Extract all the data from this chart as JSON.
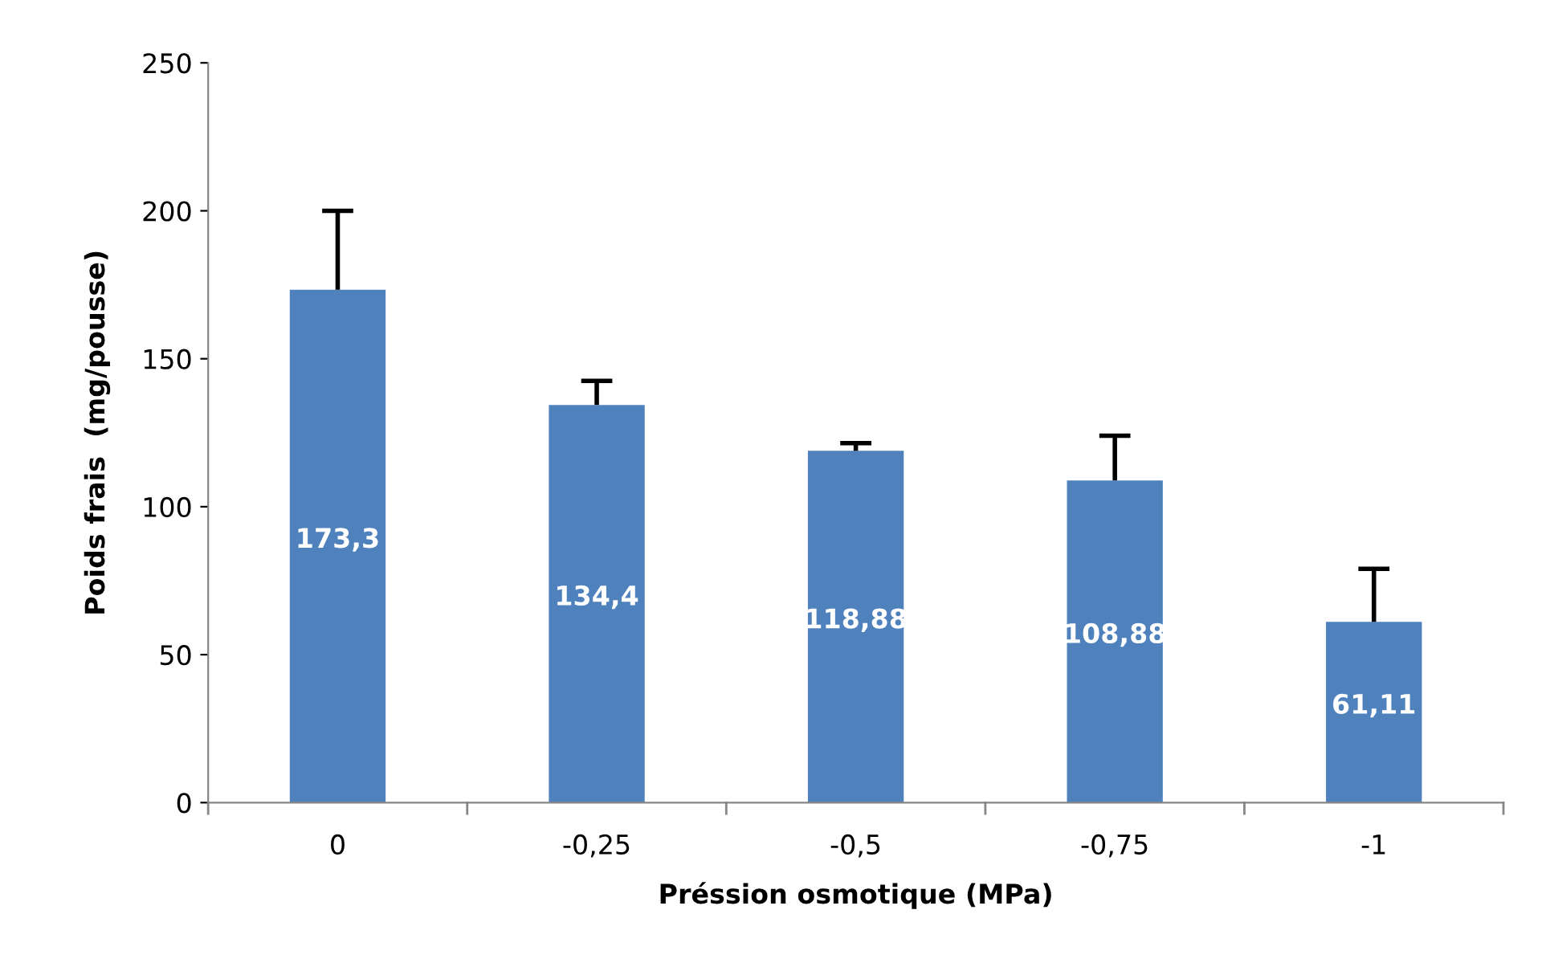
{
  "chart_data": {
    "type": "bar",
    "xlabel": "Préssion osmotique (MPa)",
    "ylabel": "Poids frais  (mg/pousse)",
    "categories": [
      "0",
      "-0,25",
      "-0,5",
      "-0,75",
      "-1"
    ],
    "values": [
      173.3,
      134.4,
      118.88,
      108.88,
      61.11
    ],
    "value_labels": [
      "173,3",
      "134,4",
      "118,88",
      "108,88",
      "61,11"
    ],
    "errors": [
      [
        173.3,
        200
      ],
      [
        134.4,
        142.5
      ],
      [
        118.88,
        121.5
      ],
      [
        108.88,
        124
      ],
      [
        61.11,
        79
      ]
    ],
    "color": "#4f81bd",
    "ylim": [
      0,
      250
    ],
    "yticks": [
      0,
      50,
      100,
      150,
      200,
      250
    ],
    "grid": false,
    "legend": false
  }
}
